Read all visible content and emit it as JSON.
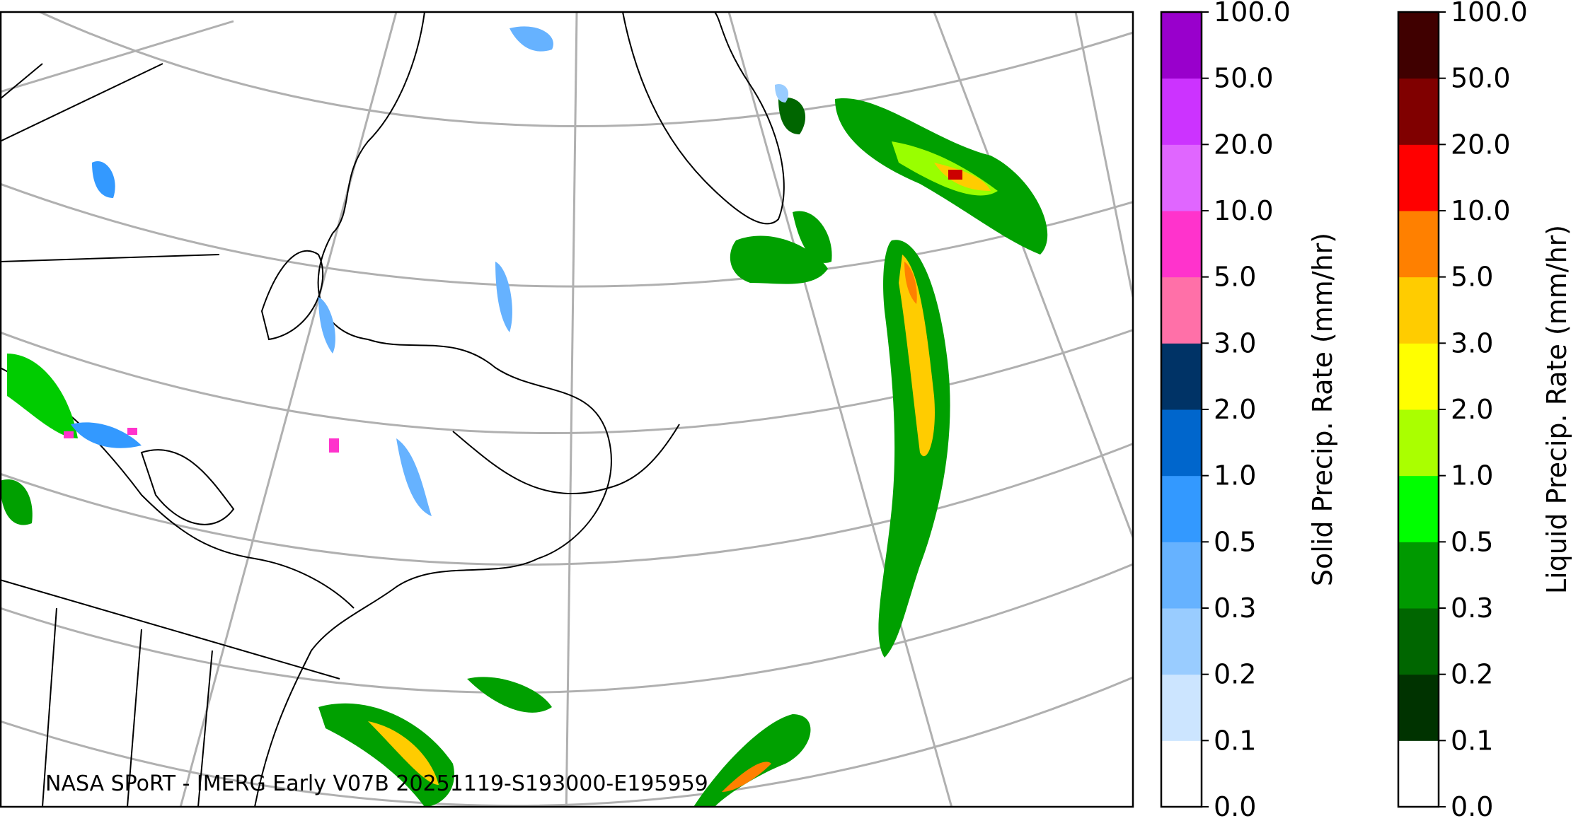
{
  "caption": "NASA SPoRT - IMERG Early V07B 20251119-S193000-E195959",
  "colorbars": [
    {
      "label": "Solid Precip. Rate (mm/hr)",
      "colors": [
        "#ffffff",
        "#cce5ff",
        "#99ccff",
        "#66b2ff",
        "#3399ff",
        "#0066cc",
        "#003366",
        "#ff70a8",
        "#ff33cc",
        "#e066ff",
        "#cc33ff",
        "#9900cc"
      ],
      "ticks": [
        {
          "value": 0,
          "label": "0.0"
        },
        {
          "value": 0.1,
          "label": "0.1"
        },
        {
          "value": 0.2,
          "label": "0.2"
        },
        {
          "value": 0.3,
          "label": "0.3"
        },
        {
          "value": 0.5,
          "label": "0.5"
        },
        {
          "value": 1,
          "label": "1.0"
        },
        {
          "value": 2,
          "label": "2.0"
        },
        {
          "value": 3,
          "label": "3.0"
        },
        {
          "value": 5,
          "label": "5.0"
        },
        {
          "value": 10,
          "label": "10.0"
        },
        {
          "value": 20,
          "label": "20.0"
        },
        {
          "value": 50,
          "label": "50.0"
        },
        {
          "value": 100,
          "label": "100.0"
        }
      ]
    },
    {
      "label": "Liquid Precip. Rate (mm/hr)",
      "colors": [
        "#ffffff",
        "#003300",
        "#006600",
        "#009900",
        "#00ff00",
        "#aaff00",
        "#ffff00",
        "#ffcc00",
        "#ff8000",
        "#ff0000",
        "#800000",
        "#400000"
      ],
      "ticks": [
        {
          "value": 0,
          "label": "0.0"
        },
        {
          "value": 0.1,
          "label": "0.1"
        },
        {
          "value": 0.2,
          "label": "0.2"
        },
        {
          "value": 0.3,
          "label": "0.3"
        },
        {
          "value": 0.5,
          "label": "0.5"
        },
        {
          "value": 1,
          "label": "1.0"
        },
        {
          "value": 2,
          "label": "2.0"
        },
        {
          "value": 3,
          "label": "3.0"
        },
        {
          "value": 5,
          "label": "5.0"
        },
        {
          "value": 10,
          "label": "10.0"
        },
        {
          "value": 20,
          "label": "20.0"
        },
        {
          "value": 50,
          "label": "50.0"
        },
        {
          "value": 100,
          "label": "100.0"
        }
      ]
    }
  ]
}
